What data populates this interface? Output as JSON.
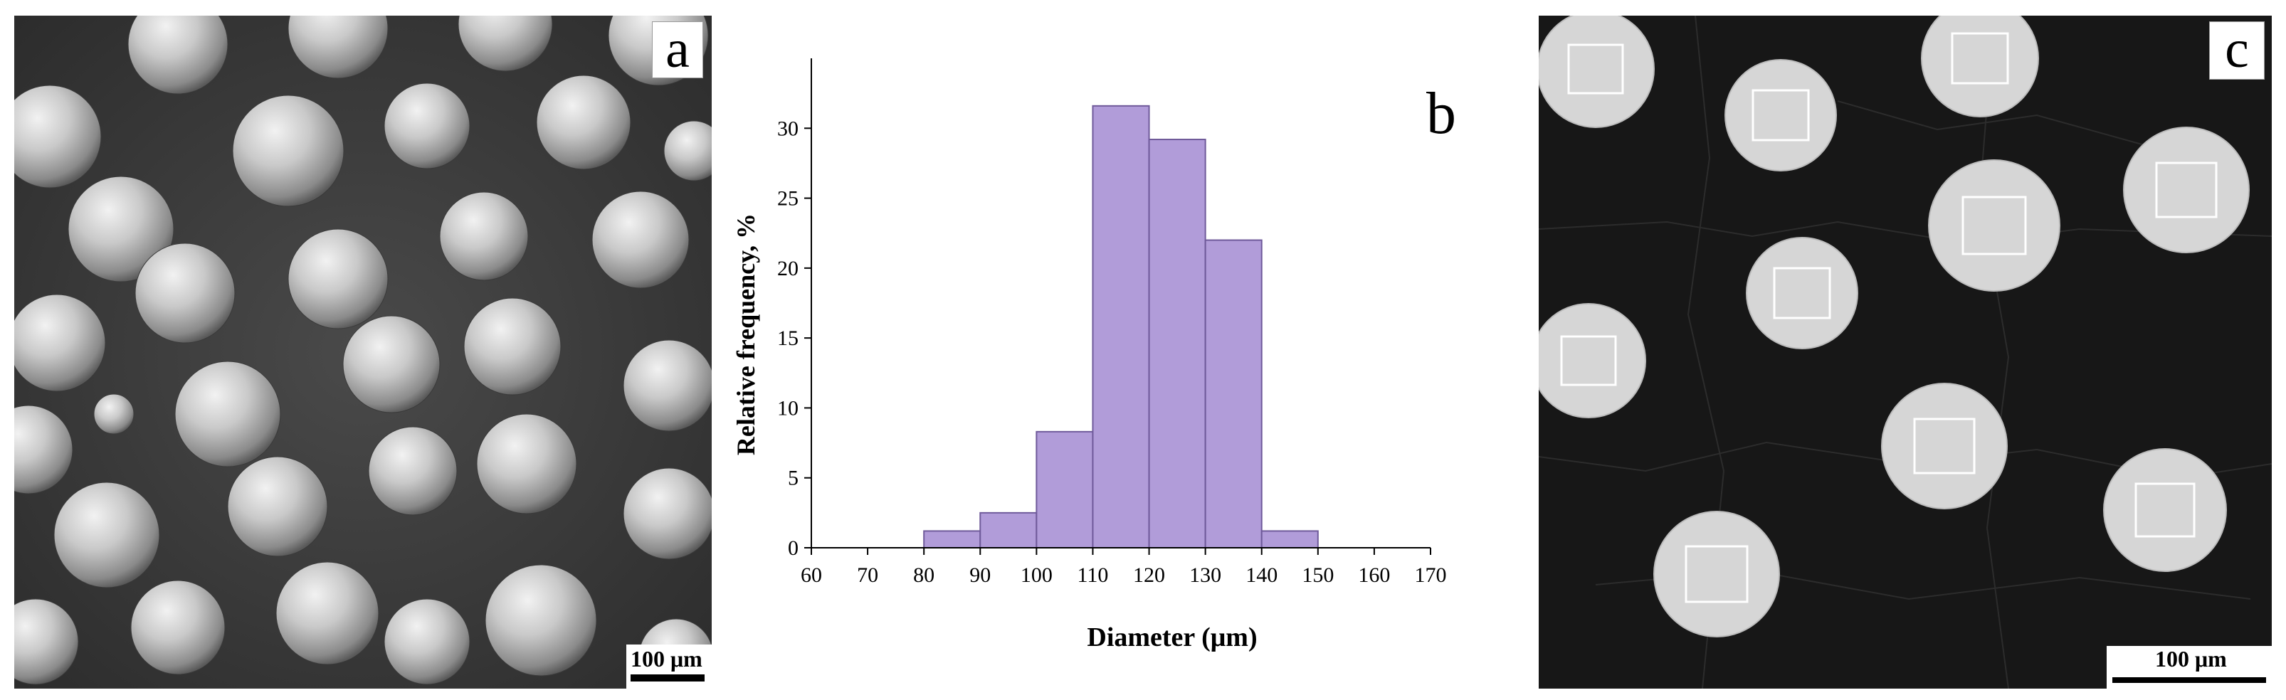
{
  "panels": {
    "a": {
      "letter": "a",
      "scale_label": "100 μm"
    },
    "b": {
      "letter": "b"
    },
    "c": {
      "letter": "c",
      "scale_label": "100 μm"
    }
  },
  "chart_data": {
    "type": "bar",
    "title": "",
    "xlabel": "Diameter (μm)",
    "ylabel": "Relative frequency, %",
    "xlim": [
      60,
      170
    ],
    "ylim": [
      0,
      35
    ],
    "x_ticks": [
      60,
      70,
      80,
      90,
      100,
      110,
      120,
      130,
      140,
      150,
      160,
      170
    ],
    "y_ticks": [
      0,
      5,
      10,
      15,
      20,
      25,
      30
    ],
    "bins": [
      {
        "from": 80,
        "to": 90,
        "value": 1.2
      },
      {
        "from": 90,
        "to": 100,
        "value": 2.5
      },
      {
        "from": 100,
        "to": 110,
        "value": 8.3
      },
      {
        "from": 110,
        "to": 120,
        "value": 31.6
      },
      {
        "from": 120,
        "to": 130,
        "value": 29.2
      },
      {
        "from": 130,
        "to": 140,
        "value": 22.0
      },
      {
        "from": 140,
        "to": 150,
        "value": 1.2
      }
    ],
    "bar_color": "#b19cd9",
    "bar_edge_color": "#6f5a9a",
    "grid": false
  }
}
